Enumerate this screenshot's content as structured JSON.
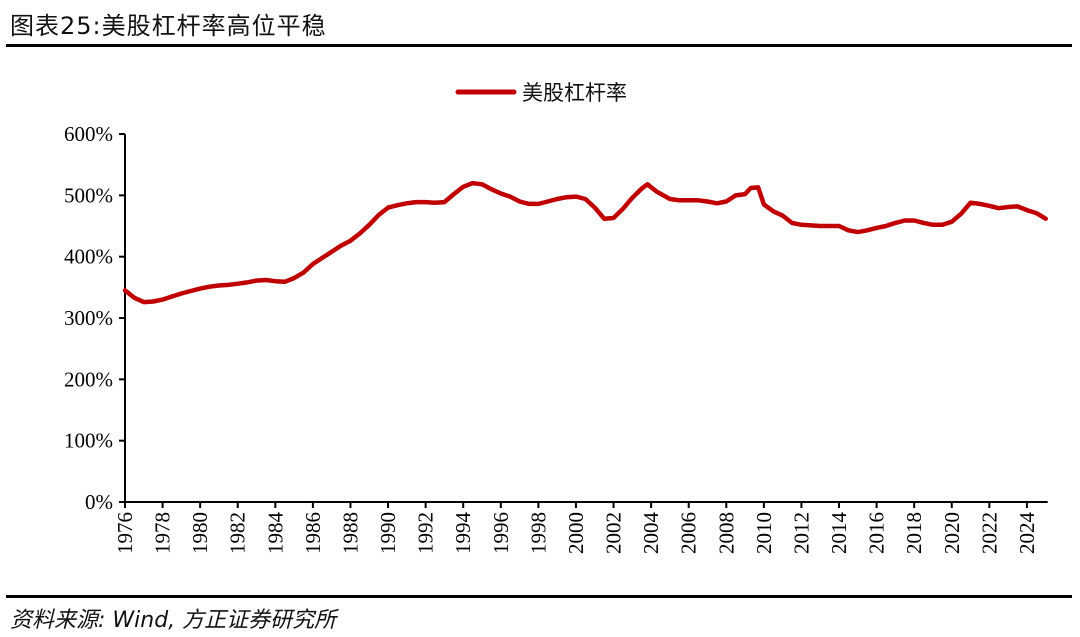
{
  "header": {
    "title": "图表25:美股杠杆率高位平稳"
  },
  "footer": {
    "source": "资料来源: Wind, 方正证券研究所"
  },
  "colors": {
    "series": "#C00000",
    "axis": "#000000"
  },
  "chart_data": {
    "type": "line",
    "title": "美股杠杆率高位平稳",
    "xlabel": "",
    "ylabel": "",
    "ylim": [
      0,
      600
    ],
    "yticks": [
      "0%",
      "100%",
      "200%",
      "300%",
      "400%",
      "500%",
      "600%"
    ],
    "xticks": [
      "1976",
      "1978",
      "1980",
      "1982",
      "1984",
      "1986",
      "1988",
      "1990",
      "1992",
      "1994",
      "1996",
      "1998",
      "2000",
      "2002",
      "2004",
      "2006",
      "2008",
      "2010",
      "2012",
      "2014",
      "2016",
      "2018",
      "2020",
      "2022",
      "2024"
    ],
    "xlim": [
      1976,
      2025
    ],
    "grid": false,
    "legend_position": "top-center",
    "series": [
      {
        "name": "美股杠杆率",
        "x": [
          1976.0,
          1976.5,
          1977.0,
          1977.5,
          1978.0,
          1978.5,
          1979.0,
          1979.5,
          1980.0,
          1980.5,
          1981.0,
          1981.5,
          1982.0,
          1982.5,
          1983.0,
          1983.5,
          1984.0,
          1984.5,
          1985.0,
          1985.5,
          1986.0,
          1986.5,
          1987.0,
          1987.5,
          1988.0,
          1988.5,
          1989.0,
          1989.5,
          1990.0,
          1990.5,
          1991.0,
          1991.5,
          1992.0,
          1992.5,
          1993.0,
          1993.5,
          1994.0,
          1994.5,
          1995.0,
          1995.5,
          1996.0,
          1996.5,
          1997.0,
          1997.5,
          1998.0,
          1998.5,
          1999.0,
          1999.5,
          2000.0,
          2000.5,
          2001.0,
          2001.5,
          2002.0,
          2002.5,
          2003.0,
          2003.5,
          2003.8,
          2004.3,
          2005.0,
          2005.5,
          2006.0,
          2006.5,
          2007.0,
          2007.5,
          2008.0,
          2008.5,
          2009.0,
          2009.3,
          2009.7,
          2010.0,
          2010.5,
          2011.0,
          2011.5,
          2012.0,
          2012.5,
          2013.0,
          2013.5,
          2014.0,
          2014.5,
          2015.0,
          2015.5,
          2016.0,
          2016.5,
          2017.0,
          2017.5,
          2018.0,
          2018.5,
          2019.0,
          2019.5,
          2020.0,
          2020.5,
          2021.0,
          2021.5,
          2022.0,
          2022.5,
          2023.0,
          2023.5,
          2024.0,
          2024.5,
          2025.0
        ],
        "values": [
          345,
          333,
          326,
          327,
          330,
          335,
          340,
          344,
          348,
          351,
          353,
          354,
          356,
          358,
          361,
          362,
          360,
          359,
          365,
          374,
          388,
          398,
          408,
          418,
          426,
          438,
          452,
          468,
          480,
          484,
          487,
          489,
          489,
          488,
          489,
          502,
          514,
          520,
          518,
          510,
          503,
          498,
          490,
          486,
          486,
          490,
          494,
          497,
          498,
          494,
          480,
          462,
          463,
          478,
          496,
          511,
          518,
          506,
          494,
          492,
          492,
          492,
          490,
          487,
          490,
          500,
          502,
          512,
          513,
          485,
          474,
          467,
          455,
          452,
          451,
          450,
          450,
          450,
          443,
          440,
          443,
          447,
          450,
          455,
          459,
          459,
          455,
          452,
          452,
          457,
          470,
          488,
          486,
          483,
          479,
          481,
          482,
          476,
          471,
          462
        ]
      }
    ]
  }
}
